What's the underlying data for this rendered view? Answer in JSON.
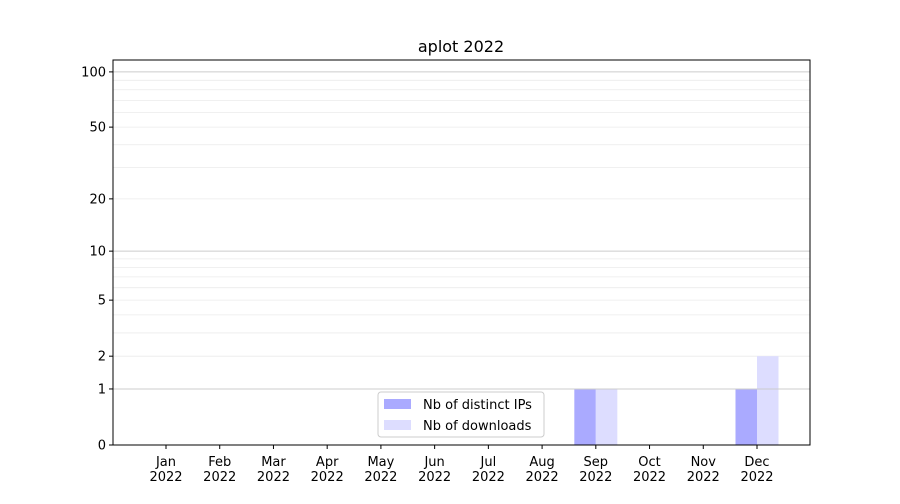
{
  "chart_data": {
    "type": "bar",
    "title": "aplot 2022",
    "xlabel": "",
    "ylabel": "",
    "categories": [
      "Jan\n2022",
      "Feb\n2022",
      "Mar\n2022",
      "Apr\n2022",
      "May\n2022",
      "Jun\n2022",
      "Jul\n2022",
      "Aug\n2022",
      "Sep\n2022",
      "Oct\n2022",
      "Nov\n2022",
      "Dec\n2022"
    ],
    "series": [
      {
        "name": "Nb of distinct IPs",
        "color": "#aaaaff",
        "values": [
          0,
          0,
          0,
          0,
          0,
          0,
          0,
          0,
          1,
          0,
          0,
          1
        ]
      },
      {
        "name": "Nb of downloads",
        "color": "#ddddff",
        "values": [
          0,
          0,
          0,
          0,
          0,
          0,
          0,
          0,
          1,
          0,
          0,
          2
        ]
      }
    ],
    "yscale": "log(1+y)",
    "ylim": [
      0,
      116
    ],
    "yticks": [
      0,
      1,
      2,
      5,
      10,
      20,
      50,
      100
    ],
    "grid": true,
    "legend": "lower-center"
  }
}
